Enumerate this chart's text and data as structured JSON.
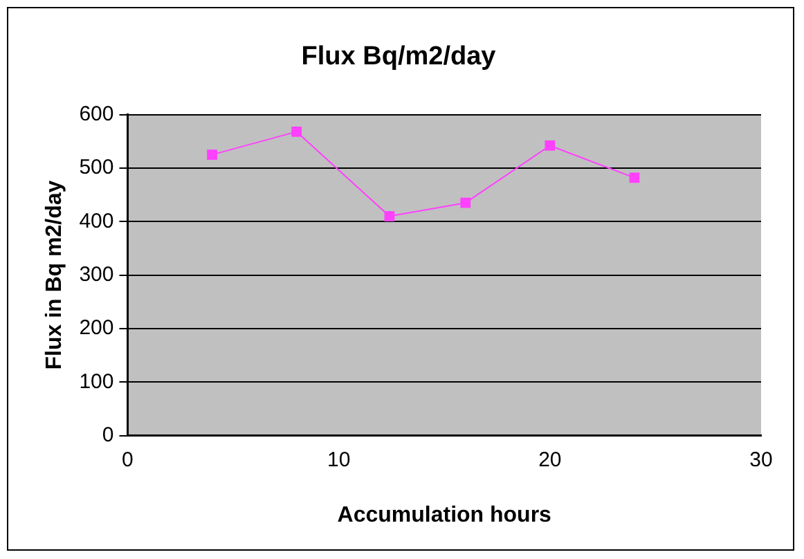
{
  "chart_data": {
    "type": "line",
    "title": "Flux Bq/m2/day",
    "xlabel": "Accumulation hours",
    "ylabel": "Flux in Bq m2/day",
    "x": [
      4,
      8,
      12.4,
      16,
      20,
      24
    ],
    "series": [
      {
        "color": "#ff40ff",
        "values": [
          525,
          568,
          410,
          435,
          542,
          482
        ]
      }
    ],
    "xlim": [
      0,
      30
    ],
    "xticks": [
      0,
      10,
      20,
      30
    ],
    "ylim": [
      0,
      600
    ],
    "yticks": [
      0,
      100,
      200,
      300,
      400,
      500,
      600
    ],
    "grid": "y",
    "legend": false,
    "marker": "square",
    "line_style": "solid"
  }
}
